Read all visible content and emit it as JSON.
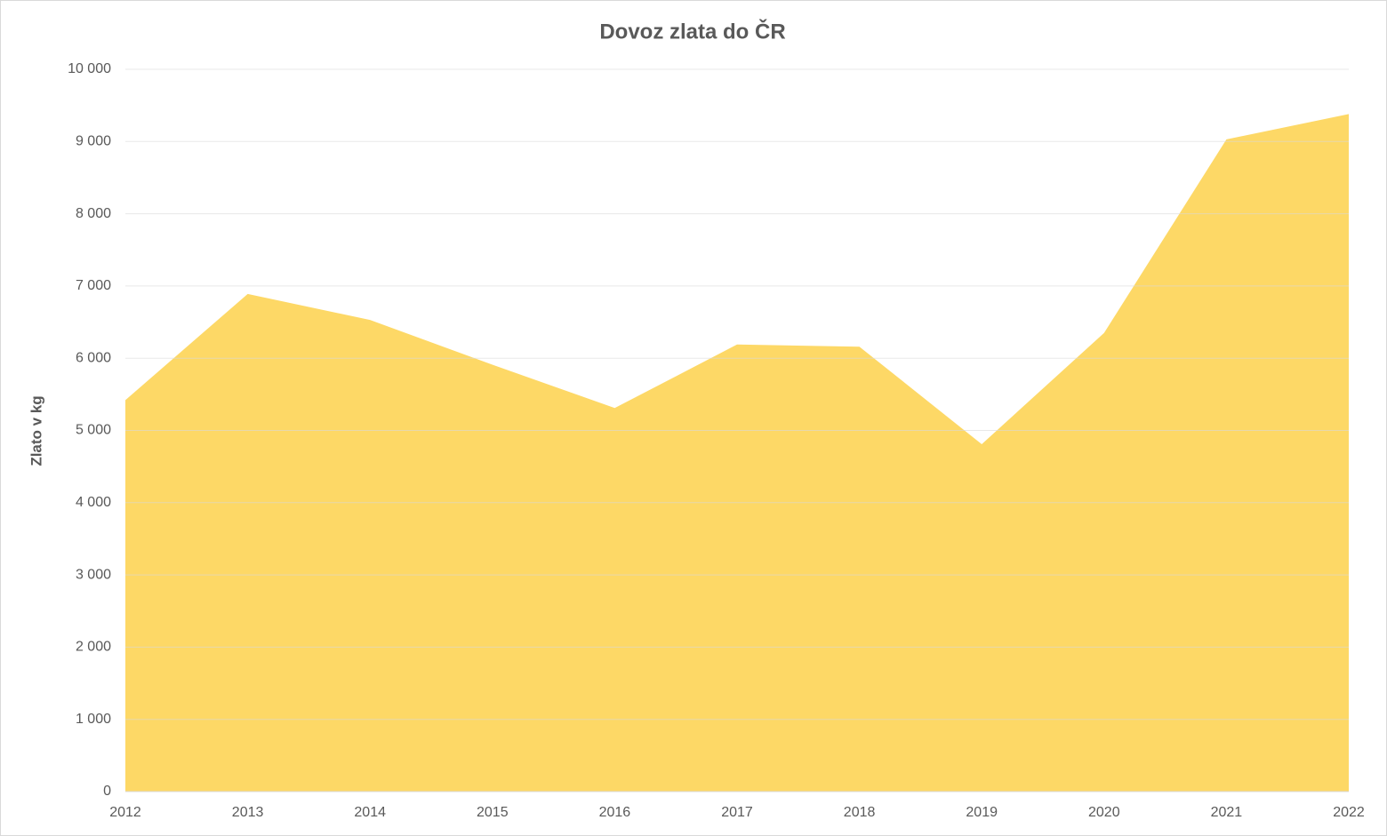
{
  "chart_data": {
    "type": "area",
    "title": "Dovoz zlata do ČR",
    "y_label": "Zlato v kg",
    "categories": [
      "2012",
      "2013",
      "2014",
      "2015",
      "2016",
      "2017",
      "2018",
      "2019",
      "2020",
      "2021",
      "2022"
    ],
    "values": [
      5420,
      6890,
      6530,
      5910,
      5310,
      6190,
      6160,
      4810,
      6350,
      9030,
      9380
    ],
    "color": "#fdd866",
    "ylim": [
      0,
      10000
    ],
    "yticks": [
      0,
      {
        "value": 1000,
        "label": "1 000"
      },
      {
        "value": 2000,
        "label": "2 000"
      },
      {
        "value": 3000,
        "label": "3 000"
      },
      {
        "value": 4000,
        "label": "4 000"
      },
      {
        "value": 5000,
        "label": "5 000"
      },
      {
        "value": 6000,
        "label": "6 000"
      },
      {
        "value": 7000,
        "label": "7 000"
      },
      {
        "value": 8000,
        "label": "8 000"
      },
      {
        "value": 9000,
        "label": "9 000"
      },
      {
        "value": 10000,
        "label": "10 000"
      }
    ],
    "grid": true
  }
}
